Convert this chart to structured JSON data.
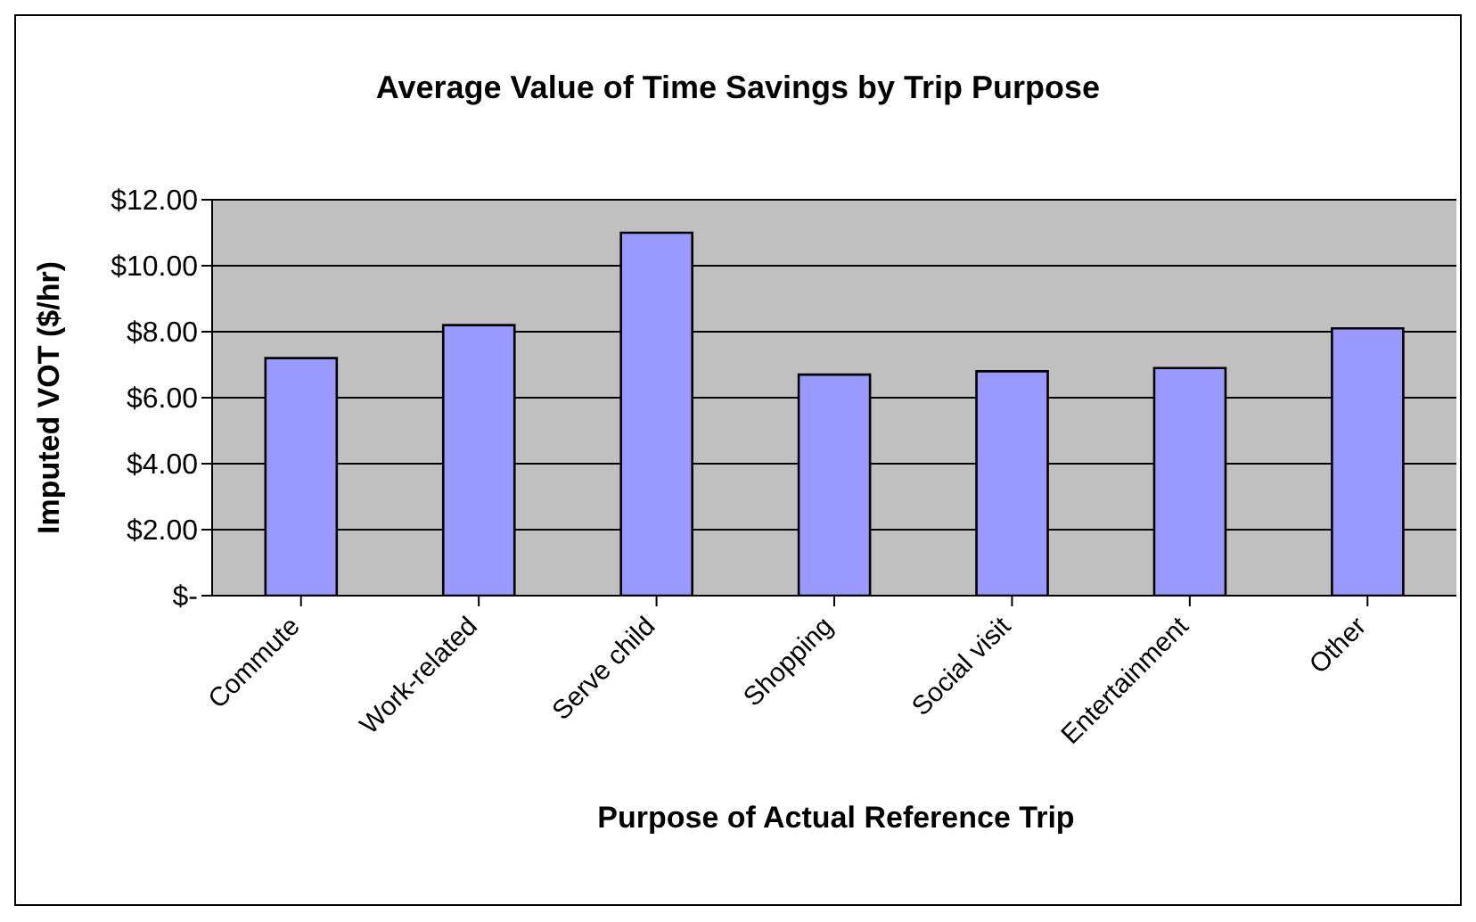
{
  "chart_data": {
    "type": "bar",
    "title": "Average Value of Time Savings by Trip Purpose",
    "xlabel": "Purpose of Actual Reference Trip",
    "ylabel": "Imputed VOT ($/hr)",
    "categories": [
      "Commute",
      "Work-related",
      "Serve child",
      "Shopping",
      "Social visit",
      "Entertainment",
      "Other"
    ],
    "values": [
      7.2,
      8.2,
      11.0,
      6.7,
      6.8,
      6.9,
      8.1
    ],
    "color": "#9999ff",
    "ylim": [
      0,
      12
    ],
    "yticks": [
      {
        "value": 0,
        "label": "$-"
      },
      {
        "value": 2,
        "label": "$2.00"
      },
      {
        "value": 4,
        "label": "$4.00"
      },
      {
        "value": 6,
        "label": "$6.00"
      },
      {
        "value": 8,
        "label": "$8.00"
      },
      {
        "value": 10,
        "label": "$10.00"
      },
      {
        "value": 12,
        "label": "$12.00"
      }
    ],
    "grid": "y",
    "legend": false
  }
}
